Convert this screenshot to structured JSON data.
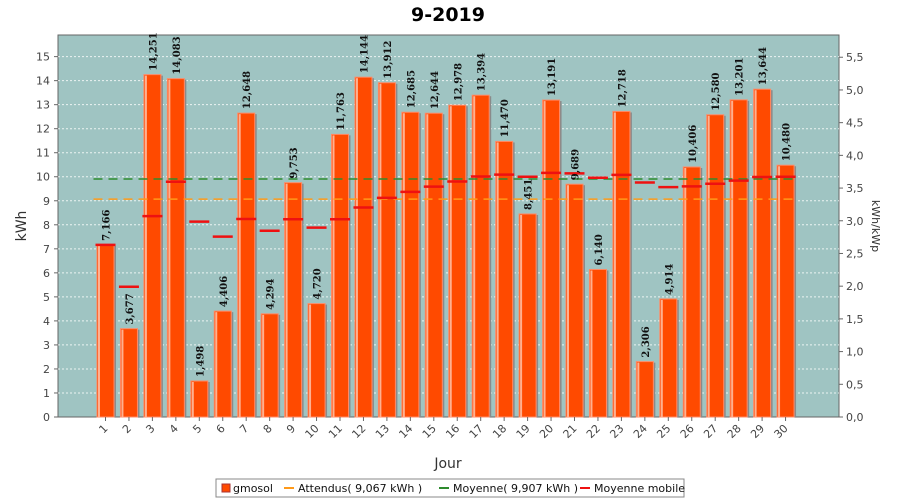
{
  "chart_data": {
    "type": "bar",
    "title": "9-2019",
    "xlabel": "Jour",
    "ylabel": "kWh",
    "y2label": "kWh/kWp",
    "ylim": [
      0,
      15.9
    ],
    "y2lim": [
      0,
      5.84
    ],
    "y_ticks": [
      "0",
      "1",
      "2",
      "3",
      "4",
      "5",
      "6",
      "7",
      "8",
      "9",
      "10",
      "11",
      "12",
      "13",
      "14",
      "15"
    ],
    "y2_ticks": [
      "0,0",
      "0,5",
      "1,0",
      "1,5",
      "2,0",
      "2,5",
      "3,0",
      "3,5",
      "4,0",
      "4,5",
      "5,0",
      "5,5"
    ],
    "categories": [
      "1",
      "2",
      "3",
      "4",
      "5",
      "6",
      "7",
      "8",
      "9",
      "10",
      "11",
      "12",
      "13",
      "14",
      "15",
      "16",
      "17",
      "18",
      "19",
      "20",
      "21",
      "22",
      "23",
      "24",
      "25",
      "26",
      "27",
      "28",
      "29",
      "30"
    ],
    "series": [
      {
        "name": "gmosol",
        "values": [
          7.166,
          3.677,
          14.251,
          14.083,
          1.498,
          4.406,
          12.648,
          4.294,
          9.753,
          4.72,
          11.763,
          14.144,
          13.912,
          12.685,
          12.644,
          12.978,
          13.394,
          11.47,
          8.451,
          13.191,
          9.689,
          6.14,
          12.718,
          2.306,
          4.914,
          10.406,
          12.58,
          13.201,
          13.644,
          10.48
        ],
        "labels": [
          "7,166",
          "3,677",
          "14,251",
          "14,083",
          "1,498",
          "4,406",
          "12,648",
          "4,294",
          "9,753",
          "4,720",
          "11,763",
          "14,144",
          "13,912",
          "12,685",
          "12,644",
          "12,978",
          "13,394",
          "11,470",
          "8,451",
          "13,191",
          "9,689",
          "6,140",
          "12,718",
          "2,306",
          "4,914",
          "10,406",
          "12,580",
          "13,201",
          "13,644",
          "10,480"
        ]
      },
      {
        "name": "Attendus( 9,067 kWh )",
        "value": 9.067
      },
      {
        "name": "Moyenne( 9,907 kWh )",
        "value": 9.907
      },
      {
        "name": "Moyenne mobile",
        "values": [
          7.166,
          5.42,
          8.36,
          9.79,
          8.13,
          7.51,
          8.24,
          7.75,
          8.23,
          7.88,
          8.23,
          8.72,
          9.12,
          9.37,
          9.59,
          9.8,
          10.01,
          10.09,
          10.0,
          10.16,
          10.14,
          9.96,
          10.08,
          9.76,
          9.57,
          9.6,
          9.71,
          9.84,
          9.99,
          10.0
        ]
      }
    ],
    "colors": {
      "bar": "#ff4a00",
      "bar_edge": "#ff8a66",
      "bar_shadow": "#8a8a8a",
      "plot_bg": "#9fc4c2",
      "attendus": "#ff9a1a",
      "moyenne": "#2e8b2e",
      "mobile": "#ee1111"
    },
    "grid": true,
    "legend_position": "bottom"
  }
}
